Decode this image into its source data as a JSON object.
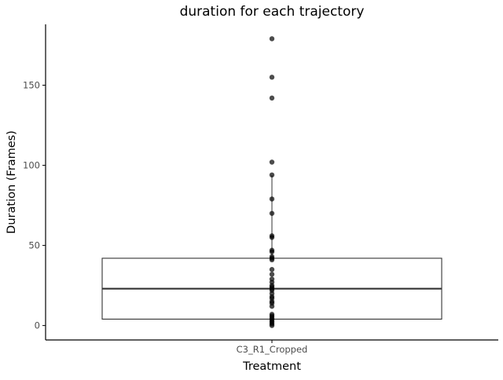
{
  "chart_data": {
    "type": "box",
    "title": "duration for each trajectory",
    "xlabel": "Treatment",
    "ylabel": "Duration (Frames)",
    "categories": [
      "C3_R1_Cropped"
    ],
    "ylim": [
      -9,
      188
    ],
    "yticks": [
      0,
      50,
      100,
      150
    ],
    "box": {
      "q1": 4,
      "median": 23,
      "q3": 42,
      "whisker_low": 0,
      "whisker_high": 94
    },
    "points": [
      179,
      155,
      142,
      102,
      94,
      79,
      70,
      56,
      55,
      47,
      46,
      43,
      42,
      41,
      35,
      32,
      29,
      27,
      25,
      24,
      23,
      22,
      20,
      18,
      17,
      15,
      14,
      12,
      7,
      6,
      5,
      4,
      3,
      2,
      1,
      0
    ],
    "colors": {
      "points": "#000000",
      "box": "#333333",
      "axis": "#000000",
      "tick_label": "#4d4d4d",
      "title": "#000000"
    },
    "grid": false,
    "legend": "none"
  }
}
